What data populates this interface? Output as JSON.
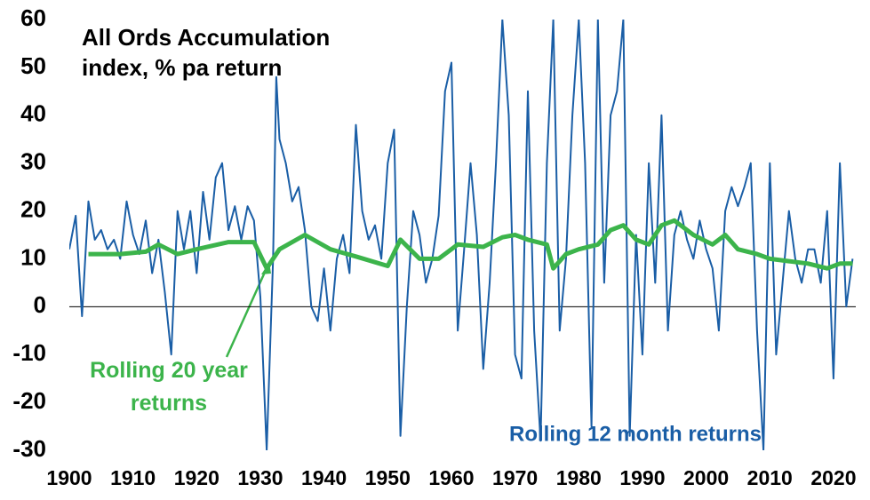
{
  "chart_data": {
    "type": "line",
    "title": [
      "All Ords Accumulation",
      "index, % pa return"
    ],
    "xlim": [
      1900,
      2023.5
    ],
    "xticks": [
      1900,
      1910,
      1920,
      1930,
      1940,
      1950,
      1960,
      1970,
      1980,
      1990,
      2000,
      2010,
      2020
    ],
    "ylim": [
      -30,
      60
    ],
    "yticks": [
      -30,
      -20,
      -10,
      0,
      10,
      20,
      30,
      40,
      50,
      60
    ],
    "series": [
      {
        "name": "Rolling 12 month returns",
        "color": "#1a5ea6",
        "x": [
          1900,
          1901,
          1902,
          1903,
          1904,
          1905,
          1906,
          1907,
          1908,
          1909,
          1910,
          1911,
          1912,
          1913,
          1914,
          1915,
          1916,
          1917,
          1918,
          1919,
          1920,
          1921,
          1922,
          1923,
          1924,
          1925,
          1926,
          1927,
          1928,
          1929,
          1930,
          1931,
          1932,
          1932.5,
          1933,
          1934,
          1935,
          1936,
          1937,
          1938,
          1939,
          1940,
          1941,
          1942,
          1943,
          1944,
          1945,
          1946,
          1947,
          1948,
          1949,
          1950,
          1951,
          1952,
          1953,
          1954,
          1955,
          1956,
          1957,
          1958,
          1959,
          1960,
          1961,
          1962,
          1963,
          1964,
          1965,
          1966,
          1967,
          1968,
          1969,
          1970,
          1971,
          1972,
          1973,
          1974,
          1975,
          1976,
          1977,
          1978,
          1979,
          1980,
          1981,
          1982,
          1983,
          1984,
          1985,
          1986,
          1987,
          1988,
          1989,
          1990,
          1991,
          1992,
          1993,
          1994,
          1995,
          1996,
          1997,
          1998,
          1999,
          2000,
          2001,
          2002,
          2003,
          2004,
          2005,
          2006,
          2007,
          2008,
          2009,
          2010,
          2011,
          2012,
          2013,
          2014,
          2015,
          2016,
          2017,
          2018,
          2019,
          2020,
          2021,
          2022,
          2023
        ],
        "values": [
          12,
          19,
          -2,
          22,
          14,
          16,
          12,
          14,
          10,
          22,
          15,
          11,
          18,
          7,
          14,
          3,
          -10,
          20,
          12,
          20,
          7,
          24,
          14,
          27,
          30,
          16,
          21,
          14,
          21,
          18,
          2,
          -30,
          10,
          48,
          35,
          30,
          22,
          25,
          16,
          0,
          -3,
          8,
          -5,
          10,
          15,
          7,
          38,
          20,
          14,
          17,
          10,
          30,
          37,
          -27,
          0,
          20,
          15,
          5,
          10,
          19,
          45,
          51,
          -5,
          12,
          30,
          15,
          -13,
          5,
          30,
          60,
          40,
          -10,
          -15,
          45,
          -5,
          -28,
          30,
          60,
          -5,
          10,
          40,
          60,
          30,
          -25,
          60,
          5,
          40,
          45,
          60,
          -27,
          15,
          -10,
          30,
          5,
          40,
          -5,
          15,
          20,
          14,
          10,
          18,
          12,
          8,
          -5,
          20,
          25,
          21,
          25,
          30,
          -5,
          -30,
          30,
          -10,
          5,
          20,
          10,
          5,
          12,
          12,
          5,
          20,
          -15,
          30,
          0,
          10
        ]
      },
      {
        "name": "Rolling 20 year returns",
        "color": "#3cb44b",
        "x": [
          1903,
          1908,
          1912,
          1914,
          1917,
          1920,
          1925,
          1929,
          1931,
          1933,
          1937,
          1941,
          1945,
          1950,
          1952,
          1955,
          1958,
          1961,
          1965,
          1968,
          1970,
          1972,
          1975,
          1976,
          1978,
          1980,
          1983,
          1985,
          1987,
          1989,
          1991,
          1993,
          1995,
          1998,
          2001,
          2003,
          2005,
          2008,
          2010,
          2013,
          2016,
          2019,
          2021,
          2023
        ],
        "values": [
          11,
          11,
          11.5,
          13,
          11,
          12,
          13.5,
          13.5,
          8,
          12,
          15,
          12,
          10.5,
          8.5,
          14,
          10,
          10,
          13,
          12.5,
          14.5,
          15,
          14,
          13,
          8,
          11,
          12,
          13,
          16,
          17,
          14,
          13,
          17,
          18,
          15,
          13,
          15,
          12,
          11,
          10,
          9.5,
          9,
          8,
          9,
          9
        ]
      }
    ]
  }
}
